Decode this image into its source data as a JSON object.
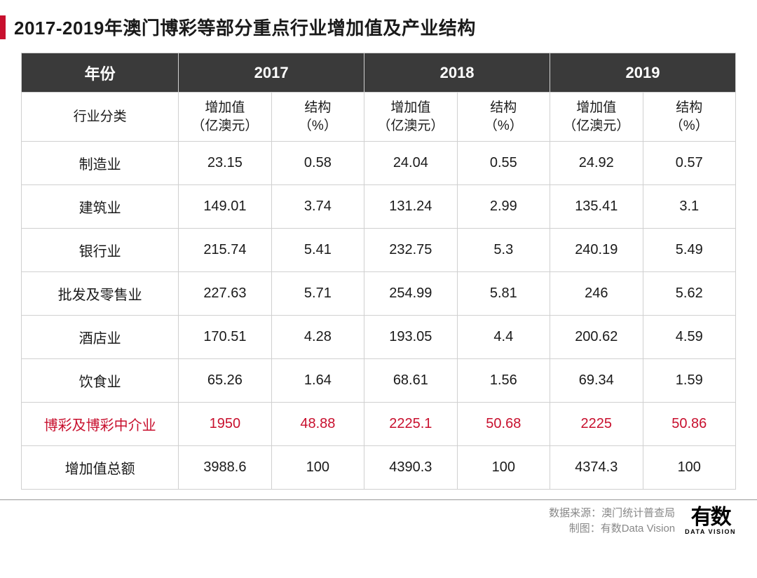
{
  "title": "2017-2019年澳门博彩等部分重点行业增加值及产业结构",
  "accent_color": "#c8102e",
  "header_bg": "#3a3a3a",
  "header_fg": "#ffffff",
  "border_color": "#d0d0d0",
  "text_color": "#1a1a1a",
  "highlight_color": "#c8102e",
  "table": {
    "year_header_first": "年份",
    "years": [
      "2017",
      "2018",
      "2019"
    ],
    "sub_header_first": "行业分类",
    "sub_headers": [
      "增加值\n（亿澳元）",
      "结构\n（%）"
    ],
    "columns_per_year": 2,
    "rows": [
      {
        "label": "制造业",
        "values": [
          "23.15",
          "0.58",
          "24.04",
          "0.55",
          "24.92",
          "0.57"
        ],
        "highlight": false
      },
      {
        "label": "建筑业",
        "values": [
          "149.01",
          "3.74",
          "131.24",
          "2.99",
          "135.41",
          "3.1"
        ],
        "highlight": false
      },
      {
        "label": "银行业",
        "values": [
          "215.74",
          "5.41",
          "232.75",
          "5.3",
          "240.19",
          "5.49"
        ],
        "highlight": false
      },
      {
        "label": "批发及零售业",
        "values": [
          "227.63",
          "5.71",
          "254.99",
          "5.81",
          "246",
          "5.62"
        ],
        "highlight": false
      },
      {
        "label": "酒店业",
        "values": [
          "170.51",
          "4.28",
          "193.05",
          "4.4",
          "200.62",
          "4.59"
        ],
        "highlight": false
      },
      {
        "label": "饮食业",
        "values": [
          "65.26",
          "1.64",
          "68.61",
          "1.56",
          "69.34",
          "1.59"
        ],
        "highlight": false
      },
      {
        "label": "博彩及博彩中介业",
        "values": [
          "1950",
          "48.88",
          "2225.1",
          "50.68",
          "2225",
          "50.86"
        ],
        "highlight": true
      },
      {
        "label": "增加值总额",
        "values": [
          "3988.6",
          "100",
          "4390.3",
          "100",
          "4374.3",
          "100"
        ],
        "highlight": false
      }
    ]
  },
  "footer": {
    "source_label": "数据来源：",
    "source_value": "澳门统计普查局",
    "credit_label": "制图：",
    "credit_value": "有数Data Vision",
    "logo_cn": "有数",
    "logo_en": "DATA VISION"
  }
}
